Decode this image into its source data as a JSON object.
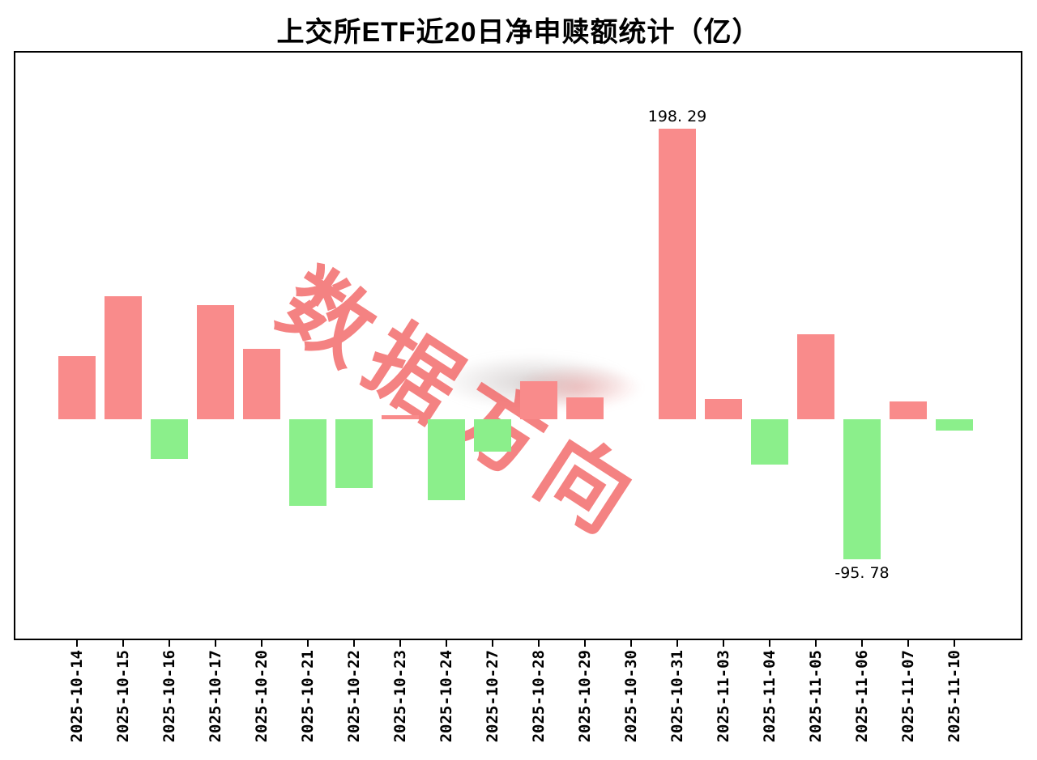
{
  "title": "上交所ETF近20日净申赎额统计（亿）",
  "watermark": {
    "text": "数据方向"
  },
  "colors": {
    "positive_bar": "#f98b8b",
    "negative_bar": "#8bef8b",
    "watermark": "#f25f5f",
    "axis": "#000000"
  },
  "chart_data": {
    "type": "bar",
    "title": "上交所ETF近20日净申赎额统计（亿）",
    "xlabel": "",
    "ylabel": "",
    "ylim": [
      -150,
      250
    ],
    "grid": false,
    "legend": "none",
    "categories": [
      "2025-10-14",
      "2025-10-15",
      "2025-10-16",
      "2025-10-17",
      "2025-10-20",
      "2025-10-21",
      "2025-10-22",
      "2025-10-23",
      "2025-10-24",
      "2025-10-27",
      "2025-10-28",
      "2025-10-29",
      "2025-10-30",
      "2025-10-31",
      "2025-11-03",
      "2025-11-04",
      "2025-11-05",
      "2025-11-06",
      "2025-11-07",
      "2025-11-10"
    ],
    "values": [
      43,
      84,
      -27,
      78,
      48,
      -59,
      -47,
      3,
      -55,
      -22,
      26,
      15,
      0,
      198.29,
      14,
      -31,
      58,
      -95.78,
      12,
      -8
    ],
    "annotations": [
      {
        "index": 13,
        "label": "198. 29",
        "position": "above"
      },
      {
        "index": 17,
        "label": "-95. 78",
        "position": "below"
      }
    ]
  }
}
